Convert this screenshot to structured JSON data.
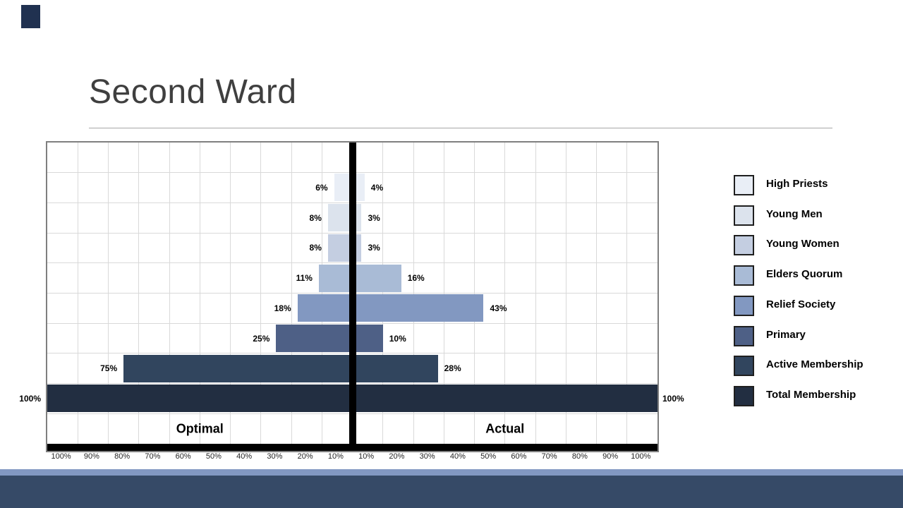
{
  "slide": {
    "title": "Second Ward",
    "accents": {
      "corner_tab": "#203150",
      "footer_strip": "#8298c2",
      "footer_band": "#364a67"
    }
  },
  "chart_data": {
    "type": "bar",
    "subtype": "diverging-horizontal-butterfly",
    "categories": [
      "High Priests",
      "Young Men",
      "Young Women",
      "Elders Quorum",
      "Relief Society",
      "Primary",
      "Active Membership",
      "Total Membership"
    ],
    "category_colors": [
      "#e9eef6",
      "#dce3ed",
      "#c4cee1",
      "#a9bbd6",
      "#8298c1",
      "#4e6086",
      "#31455e",
      "#222e41"
    ],
    "series": [
      {
        "name": "Optimal",
        "side": "left",
        "values": [
          6,
          8,
          8,
          11,
          18,
          25,
          75,
          100
        ]
      },
      {
        "name": "Actual",
        "side": "right",
        "values": [
          4,
          3,
          3,
          16,
          43,
          10,
          28,
          100
        ]
      }
    ],
    "value_suffix": "%",
    "side_labels": {
      "left": "Optimal",
      "right": "Actual"
    },
    "axis_ticks_left": [
      "100%",
      "90%",
      "80%",
      "70%",
      "60%",
      "50%",
      "40%",
      "30%",
      "20%",
      "10%"
    ],
    "axis_ticks_right": [
      "10%",
      "20%",
      "30%",
      "40%",
      "50%",
      "60%",
      "70%",
      "80%",
      "90%",
      "100%"
    ],
    "xlim_percent_each_side": 100,
    "grid": true,
    "legend_position": "right",
    "grid_color": "#d9d9d9",
    "divider_color": "#000000"
  }
}
